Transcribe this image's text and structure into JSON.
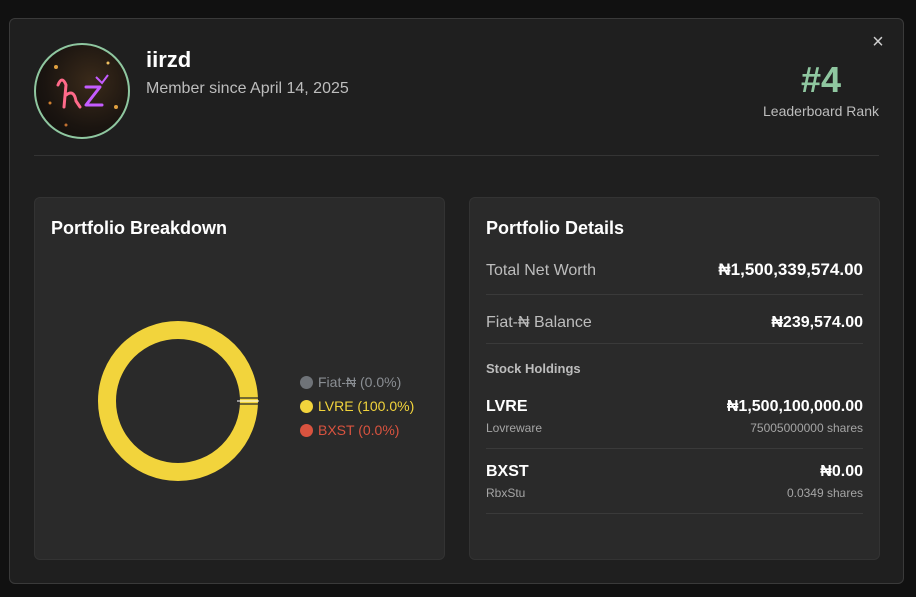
{
  "profile": {
    "username": "iirzd",
    "member_since": "Member since April 14, 2025",
    "rank": "#4",
    "rank_label": "Leaderboard Rank"
  },
  "breakdown": {
    "title": "Portfolio Breakdown",
    "legend": [
      {
        "label": "Fiat-₦ (0.0%)",
        "color": "#6f7378",
        "percent": 0.0
      },
      {
        "label": "LVRE (100.0%)",
        "color": "#f2d43c",
        "percent": 100.0
      },
      {
        "label": "BXST (0.0%)",
        "color": "#d9533f",
        "percent": 0.0
      }
    ]
  },
  "details": {
    "title": "Portfolio Details",
    "net_worth_label": "Total Net Worth",
    "net_worth_value": "₦1,500,339,574.00",
    "fiat_label": "Fiat-₦ Balance",
    "fiat_value": "₦239,574.00",
    "holdings_title": "Stock Holdings",
    "holdings": [
      {
        "symbol": "LVRE",
        "name": "Lovreware",
        "amount": "₦1,500,100,000.00",
        "shares": "75005000000 shares"
      },
      {
        "symbol": "BXST",
        "name": "RbxStu",
        "amount": "₦0.00",
        "shares": "0.0349 shares"
      }
    ]
  },
  "icons": {
    "close": "close-icon",
    "avatar": "avatar-image"
  },
  "colors": {
    "accent": "#8fc7a0",
    "card": "#2a2a2a",
    "modal": "#1f1f1f"
  }
}
